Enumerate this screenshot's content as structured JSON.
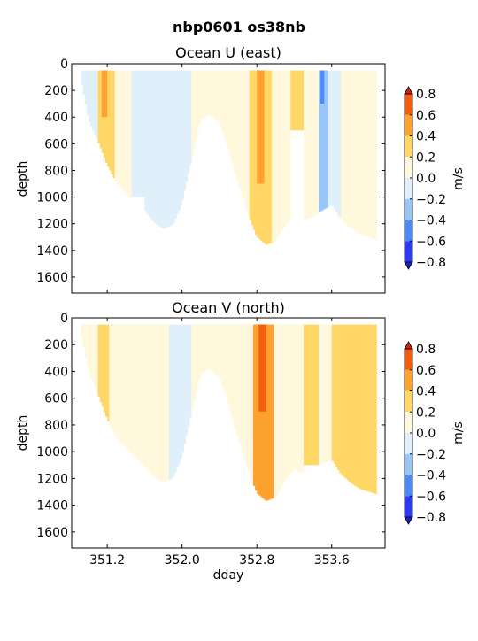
{
  "figure": {
    "suptitle": "nbp0601 os38nb",
    "xlabel": "dday"
  },
  "chart_data": [
    {
      "type": "heatmap",
      "title": "Ocean U (east)",
      "ylabel": "depth",
      "ylim": [
        1720,
        0
      ],
      "xlim": [
        350.82,
        354.17
      ],
      "y_ticks": [
        0,
        200,
        400,
        600,
        800,
        1000,
        1200,
        1400,
        1600
      ],
      "x_ticks": [
        351.2,
        352.0,
        352.8,
        353.6
      ],
      "colorbar": {
        "label": "m/s",
        "ticks": [
          0.8,
          0.6,
          0.4,
          0.2,
          0.0,
          -0.2,
          -0.4,
          -0.6,
          -0.8
        ],
        "levels": [
          -0.8,
          -0.6,
          -0.4,
          -0.2,
          0.0,
          0.2,
          0.4,
          0.6,
          0.8
        ],
        "colors": [
          "#2b3cf0",
          "#4d88f5",
          "#99c7f5",
          "#dff0fb",
          "#fff8dc",
          "#ffd766",
          "#fda12f",
          "#f35d0f"
        ],
        "extend_colors": [
          "#1c22c8",
          "#d4220e"
        ]
      },
      "bottom_profile": [
        [
          350.92,
          120
        ],
        [
          351.0,
          420
        ],
        [
          351.1,
          580
        ],
        [
          351.2,
          760
        ],
        [
          351.3,
          900
        ],
        [
          351.45,
          1010
        ],
        [
          351.6,
          1100
        ],
        [
          351.7,
          1190
        ],
        [
          351.8,
          1240
        ],
        [
          351.9,
          1210
        ],
        [
          352.0,
          1050
        ],
        [
          352.1,
          720
        ],
        [
          352.2,
          420
        ],
        [
          352.3,
          380
        ],
        [
          352.4,
          450
        ],
        [
          352.5,
          660
        ],
        [
          352.6,
          900
        ],
        [
          352.7,
          1120
        ],
        [
          352.8,
          1300
        ],
        [
          352.9,
          1360
        ],
        [
          353.0,
          1330
        ],
        [
          353.1,
          1220
        ],
        [
          353.2,
          1130
        ],
        [
          353.3,
          1170
        ],
        [
          353.4,
          1150
        ],
        [
          353.5,
          1100
        ],
        [
          353.6,
          1060
        ],
        [
          353.7,
          1170
        ],
        [
          353.8,
          1230
        ],
        [
          353.9,
          1280
        ],
        [
          354.0,
          1300
        ],
        [
          354.08,
          1320
        ]
      ],
      "bands": [
        {
          "x0": 350.92,
          "x1": 351.1,
          "v": 0.0
        },
        {
          "x0": 351.1,
          "x1": 351.28,
          "v": 0.3
        },
        {
          "x0": 351.13,
          "x1": 351.2,
          "v": 0.45,
          "d1": 400
        },
        {
          "x0": 351.28,
          "x1": 351.45,
          "v": 0.05
        },
        {
          "x0": 351.45,
          "x1": 351.6,
          "v": -0.1,
          "d1": 1000
        },
        {
          "x0": 351.6,
          "x1": 351.8,
          "v": 0.0
        },
        {
          "x0": 351.8,
          "x1": 352.1,
          "v": -0.1
        },
        {
          "x0": 352.1,
          "x1": 352.5,
          "v": 0.05
        },
        {
          "x0": 352.5,
          "x1": 352.72,
          "v": 0.1
        },
        {
          "x0": 352.72,
          "x1": 352.95,
          "v": 0.3
        },
        {
          "x0": 352.8,
          "x1": 352.88,
          "v": 0.45,
          "d1": 900
        },
        {
          "x0": 352.95,
          "x1": 353.15,
          "v": 0.1
        },
        {
          "x0": 353.15,
          "x1": 353.3,
          "v": 0.3,
          "d1": 500
        },
        {
          "x0": 353.3,
          "x1": 353.45,
          "v": 0.05
        },
        {
          "x0": 353.45,
          "x1": 353.55,
          "v": -0.3
        },
        {
          "x0": 353.47,
          "x1": 353.52,
          "v": -0.5,
          "d1": 300
        },
        {
          "x0": 353.55,
          "x1": 353.7,
          "v": -0.1
        },
        {
          "x0": 353.7,
          "x1": 354.08,
          "v": 0.05
        }
      ]
    },
    {
      "type": "heatmap",
      "title": "Ocean V (north)",
      "ylabel": "depth",
      "ylim": [
        1720,
        0
      ],
      "xlim": [
        350.82,
        354.17
      ],
      "y_ticks": [
        0,
        200,
        400,
        600,
        800,
        1000,
        1200,
        1400,
        1600
      ],
      "x_ticks": [
        351.2,
        352.0,
        352.8,
        353.6
      ],
      "colorbar": {
        "label": "m/s",
        "ticks": [
          0.8,
          0.6,
          0.4,
          0.2,
          0.0,
          -0.2,
          -0.4,
          -0.6,
          -0.8
        ],
        "levels": [
          -0.8,
          -0.6,
          -0.4,
          -0.2,
          0.0,
          0.2,
          0.4,
          0.6,
          0.8
        ],
        "colors": [
          "#2b3cf0",
          "#4d88f5",
          "#99c7f5",
          "#dff0fb",
          "#fff8dc",
          "#ffd766",
          "#fda12f",
          "#f35d0f"
        ],
        "extend_colors": [
          "#1c22c8",
          "#d4220e"
        ]
      },
      "bottom_profile": [
        [
          350.92,
          110
        ],
        [
          351.0,
          400
        ],
        [
          351.1,
          570
        ],
        [
          351.2,
          760
        ],
        [
          351.3,
          900
        ],
        [
          351.45,
          1010
        ],
        [
          351.6,
          1110
        ],
        [
          351.7,
          1190
        ],
        [
          351.8,
          1230
        ],
        [
          351.9,
          1200
        ],
        [
          352.0,
          1040
        ],
        [
          352.1,
          710
        ],
        [
          352.2,
          420
        ],
        [
          352.3,
          380
        ],
        [
          352.4,
          450
        ],
        [
          352.5,
          660
        ],
        [
          352.6,
          900
        ],
        [
          352.7,
          1130
        ],
        [
          352.8,
          1310
        ],
        [
          352.9,
          1370
        ],
        [
          353.0,
          1340
        ],
        [
          353.1,
          1220
        ],
        [
          353.2,
          1130
        ],
        [
          353.3,
          1170
        ],
        [
          353.4,
          1150
        ],
        [
          353.5,
          1090
        ],
        [
          353.6,
          1060
        ],
        [
          353.7,
          1170
        ],
        [
          353.8,
          1230
        ],
        [
          353.9,
          1280
        ],
        [
          354.0,
          1300
        ],
        [
          354.08,
          1320
        ]
      ],
      "bands": [
        {
          "x0": 350.92,
          "x1": 351.1,
          "v": 0.05
        },
        {
          "x0": 351.1,
          "x1": 351.22,
          "v": 0.25,
          "d1": 900
        },
        {
          "x0": 351.22,
          "x1": 351.5,
          "v": 0.05
        },
        {
          "x0": 351.5,
          "x1": 351.85,
          "v": 0.05
        },
        {
          "x0": 351.85,
          "x1": 352.1,
          "v": -0.05
        },
        {
          "x0": 352.1,
          "x1": 352.5,
          "v": 0.05
        },
        {
          "x0": 352.5,
          "x1": 352.75,
          "v": 0.1
        },
        {
          "x0": 352.75,
          "x1": 352.98,
          "v": 0.5
        },
        {
          "x0": 352.82,
          "x1": 352.9,
          "v": 0.65,
          "d1": 700
        },
        {
          "x0": 352.98,
          "x1": 353.15,
          "v": 0.2
        },
        {
          "x0": 353.15,
          "x1": 353.3,
          "v": 0.1
        },
        {
          "x0": 353.3,
          "x1": 353.45,
          "v": 0.35,
          "d1": 1100
        },
        {
          "x0": 353.45,
          "x1": 353.6,
          "v": 0.1
        },
        {
          "x0": 353.6,
          "x1": 353.75,
          "v": 0.25
        },
        {
          "x0": 353.75,
          "x1": 354.08,
          "v": 0.3
        }
      ]
    }
  ]
}
